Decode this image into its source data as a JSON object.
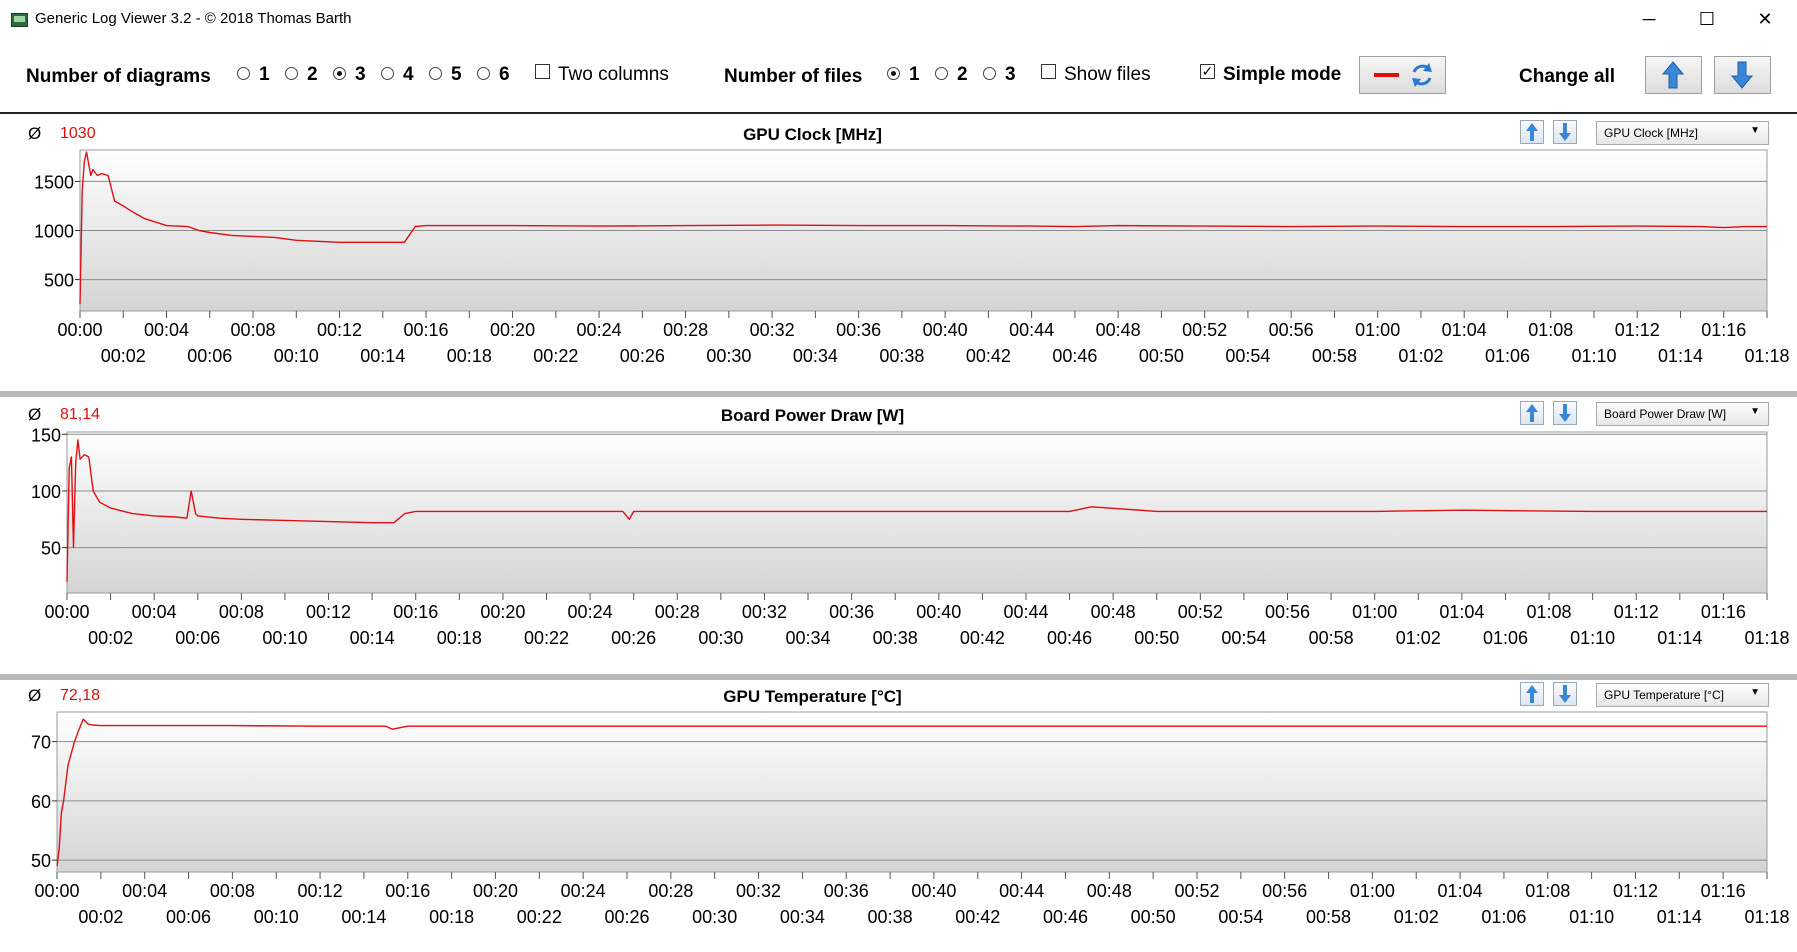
{
  "window": {
    "title": "Generic Log Viewer 3.2 - © 2018 Thomas Barth",
    "controls": {
      "minimize": "─",
      "maximize": "☐",
      "close": "✕"
    }
  },
  "toolbar": {
    "diagrams_label": "Number of diagrams",
    "diagram_options": [
      "1",
      "2",
      "3",
      "4",
      "5",
      "6"
    ],
    "diagram_selected": "3",
    "two_columns_label": "Two columns",
    "two_columns_checked": false,
    "files_label": "Number of files",
    "file_options": [
      "1",
      "2",
      "3"
    ],
    "file_selected": "1",
    "show_files_label": "Show files",
    "show_files_checked": false,
    "simple_mode_label": "Simple mode",
    "simple_mode_checked": true,
    "change_all_label": "Change all",
    "check_mark": "✓"
  },
  "colors": {
    "series": "#e01010",
    "accent_blue": "#3a86d8"
  },
  "panels": [
    {
      "title": "GPU Clock [MHz]",
      "avg_symbol": "Ø",
      "avg_value": "1030",
      "selector": "GPU Clock [MHz]",
      "chart_data": {
        "type": "line",
        "title": "GPU Clock [MHz]",
        "ylim": [
          180,
          1820
        ],
        "yticks": [
          500,
          1000,
          1500
        ],
        "xmax": 78,
        "grid": true,
        "x_tick_labels_upper": [
          "00:00",
          "00:04",
          "00:08",
          "00:12",
          "00:16",
          "00:20",
          "00:24",
          "00:28",
          "00:32",
          "00:36",
          "00:40",
          "00:44",
          "00:48",
          "00:52",
          "00:56",
          "01:00",
          "01:04",
          "01:08",
          "01:12",
          "01:16"
        ],
        "x_tick_labels_lower": [
          "00:02",
          "00:06",
          "00:10",
          "00:14",
          "00:18",
          "00:22",
          "00:26",
          "00:30",
          "00:34",
          "00:38",
          "00:42",
          "00:46",
          "00:50",
          "00:54",
          "00:58",
          "01:02",
          "01:06",
          "01:10",
          "01:14",
          "01:18"
        ],
        "series": [
          {
            "x": [
              0,
              0.1,
              0.2,
              0.3,
              0.5,
              0.6,
              0.8,
              1,
              1.3,
              1.6,
              2,
              2.5,
              3,
              4,
              5,
              5.5,
              6,
              7,
              8,
              9,
              10,
              11,
              12,
              13,
              14,
              15,
              15.5,
              16,
              18,
              20,
              24,
              28,
              32,
              36,
              40,
              44,
              46,
              48,
              52,
              56,
              60,
              64,
              68,
              72,
              75,
              76,
              77,
              78
            ],
            "y": [
              250,
              1400,
              1700,
              1800,
              1560,
              1620,
              1560,
              1580,
              1560,
              1300,
              1250,
              1180,
              1120,
              1050,
              1040,
              1000,
              980,
              950,
              940,
              930,
              900,
              890,
              880,
              880,
              880,
              880,
              1040,
              1050,
              1050,
              1050,
              1045,
              1050,
              1055,
              1050,
              1050,
              1045,
              1040,
              1050,
              1045,
              1040,
              1045,
              1040,
              1040,
              1045,
              1040,
              1030,
              1040,
              1040
            ]
          }
        ]
      }
    },
    {
      "title": "Board Power Draw [W]",
      "avg_symbol": "Ø",
      "avg_value": "81,14",
      "selector": "Board Power Draw [W]",
      "chart_data": {
        "type": "line",
        "title": "Board Power Draw [W]",
        "ylim": [
          10,
          152
        ],
        "yticks": [
          50,
          100,
          150
        ],
        "xmax": 78,
        "grid": true,
        "x_tick_labels_upper": [
          "00:00",
          "00:04",
          "00:08",
          "00:12",
          "00:16",
          "00:20",
          "00:24",
          "00:28",
          "00:32",
          "00:36",
          "00:40",
          "00:44",
          "00:48",
          "00:52",
          "00:56",
          "01:00",
          "01:04",
          "01:08",
          "01:12",
          "01:16"
        ],
        "x_tick_labels_lower": [
          "00:02",
          "00:06",
          "00:10",
          "00:14",
          "00:18",
          "00:22",
          "00:26",
          "00:30",
          "00:34",
          "00:38",
          "00:42",
          "00:46",
          "00:50",
          "00:54",
          "00:58",
          "01:02",
          "01:06",
          "01:10",
          "01:14",
          "01:18"
        ],
        "series": [
          {
            "x": [
              0,
              0.1,
              0.2,
              0.3,
              0.4,
              0.5,
              0.6,
              0.8,
              1,
              1.2,
              1.5,
              2,
              3,
              4,
              5,
              5.5,
              5.7,
              5.9,
              6,
              7,
              8,
              10,
              12,
              14,
              15,
              15.5,
              16,
              20,
              24,
              25.5,
              25.8,
              26,
              30,
              40,
              46,
              47,
              50,
              60,
              64,
              70,
              75,
              78
            ],
            "y": [
              20,
              120,
              130,
              50,
              125,
              145,
              128,
              132,
              130,
              100,
              90,
              85,
              80,
              78,
              77,
              76,
              100,
              80,
              78,
              76,
              75,
              74,
              73,
              72,
              72,
              80,
              82,
              82,
              82,
              82,
              75,
              82,
              82,
              82,
              82,
              86,
              82,
              82,
              83,
              82,
              82,
              82
            ]
          }
        ]
      }
    },
    {
      "title": "GPU Temperature [°C]",
      "avg_symbol": "Ø",
      "avg_value": "72,18",
      "selector": "GPU Temperature [°C]",
      "chart_data": {
        "type": "line",
        "title": "GPU Temperature [°C]",
        "ylim": [
          48,
          75
        ],
        "yticks": [
          50,
          60,
          70
        ],
        "xmax": 78,
        "grid": true,
        "x_tick_labels_upper": [
          "00:00",
          "00:04",
          "00:08",
          "00:12",
          "00:16",
          "00:20",
          "00:24",
          "00:28",
          "00:32",
          "00:36",
          "00:40",
          "00:44",
          "00:48",
          "00:52",
          "00:56",
          "01:00",
          "01:04",
          "01:08",
          "01:12",
          "01:16"
        ],
        "x_tick_labels_lower": [
          "00:02",
          "00:06",
          "00:10",
          "00:14",
          "00:18",
          "00:22",
          "00:26",
          "00:30",
          "00:34",
          "00:38",
          "00:42",
          "00:46",
          "00:50",
          "00:54",
          "00:58",
          "01:02",
          "01:06",
          "01:10",
          "01:14",
          "01:18"
        ],
        "series": [
          {
            "x": [
              0,
              0.1,
              0.2,
              0.3,
              0.5,
              0.8,
              1,
              1.2,
              1.4,
              1.6,
              2,
              4,
              8,
              12,
              15,
              15.3,
              16,
              20,
              30,
              40,
              50,
              60,
              70,
              78
            ],
            "y": [
              49,
              52,
              58,
              60,
              66,
              70,
              72,
              73.8,
              73,
              72.8,
              72.7,
              72.7,
              72.7,
              72.6,
              72.6,
              72.1,
              72.6,
              72.6,
              72.6,
              72.6,
              72.6,
              72.6,
              72.6,
              72.6
            ]
          }
        ]
      }
    }
  ]
}
